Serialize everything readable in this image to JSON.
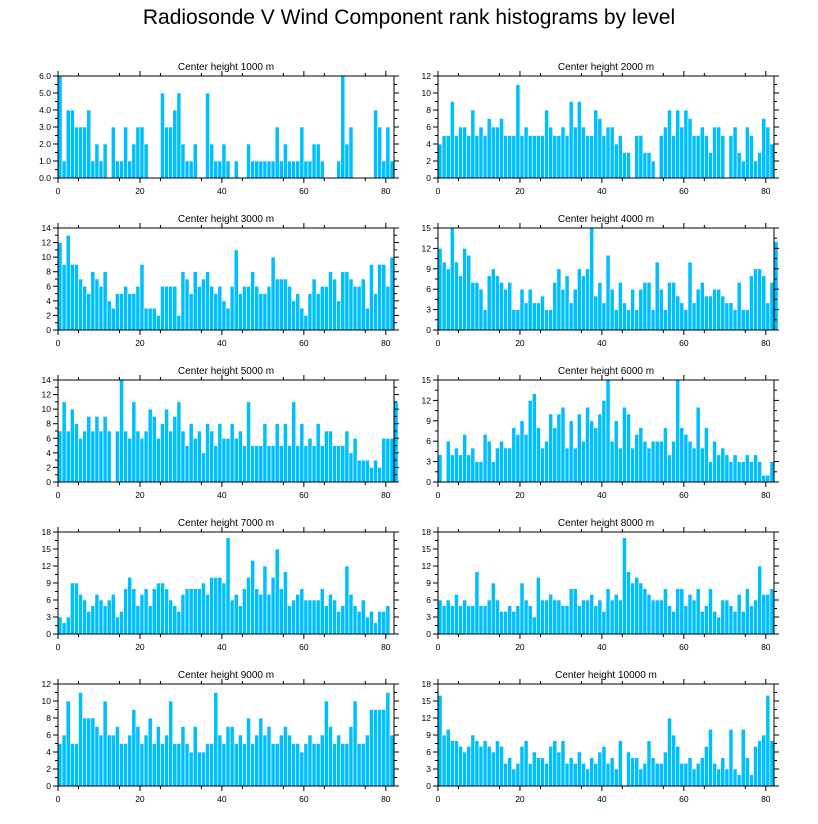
{
  "title": "Radiosonde V Wind Component rank histograms by level",
  "colors": {
    "bar": "#00bfff",
    "frame": "#000000",
    "background": "#ffffff"
  },
  "chart_data": [
    {
      "type": "bar",
      "title": "Center height 1000 m",
      "xlim": [
        0,
        82
      ],
      "ylim": [
        0,
        6
      ],
      "yticks": [
        0,
        1,
        2,
        3,
        4,
        5,
        6
      ],
      "ytick_labels": [
        "0.0",
        "1.0",
        "2.0",
        "3.0",
        "4.0",
        "5.0",
        "6.0"
      ],
      "xticks": [
        0,
        20,
        40,
        60,
        80
      ],
      "values": [
        6,
        1,
        4,
        4,
        3,
        3,
        3,
        4,
        1,
        2,
        1,
        2,
        0,
        3,
        1,
        1,
        3,
        1,
        2,
        3,
        3,
        2,
        0,
        0,
        0,
        5,
        3,
        3,
        4,
        5,
        2,
        1,
        1,
        2,
        0,
        0,
        5,
        2,
        1,
        1,
        2,
        1,
        0,
        1,
        0,
        0,
        2,
        1,
        1,
        1,
        1,
        1,
        1,
        3,
        1,
        2,
        1,
        1,
        1,
        3,
        1,
        1,
        2,
        2,
        1,
        0,
        0,
        0,
        1,
        6,
        2,
        3,
        0,
        0,
        0,
        0,
        0,
        4,
        3,
        1,
        3,
        1
      ]
    },
    {
      "type": "bar",
      "title": "Center height 2000 m",
      "xlim": [
        0,
        82
      ],
      "ylim": [
        0,
        12
      ],
      "yticks": [
        0,
        2,
        4,
        6,
        8,
        10,
        12
      ],
      "ytick_labels": [
        "0",
        "2",
        "4",
        "6",
        "8",
        "10",
        "12"
      ],
      "xticks": [
        0,
        20,
        40,
        60,
        80
      ],
      "values": [
        4,
        5,
        5,
        9,
        5,
        6,
        6,
        5,
        8,
        5,
        6,
        5,
        7,
        6,
        6,
        7,
        5,
        5,
        5,
        11,
        5,
        6,
        5,
        5,
        5,
        5,
        8,
        6,
        5,
        5,
        6,
        5,
        9,
        6,
        9,
        6,
        5,
        5,
        8,
        7,
        5,
        6,
        6,
        4,
        5,
        3,
        3,
        0,
        5,
        5,
        3,
        3,
        2,
        0,
        5,
        6,
        8,
        5,
        8,
        6,
        8,
        7,
        5,
        5,
        6,
        5,
        3,
        6,
        6,
        5,
        0,
        5,
        6,
        3,
        2,
        6,
        5,
        2,
        3,
        7,
        6,
        4
      ]
    },
    {
      "type": "bar",
      "title": "Center height 3000 m",
      "xlim": [
        0,
        82
      ],
      "ylim": [
        0,
        14
      ],
      "yticks": [
        0,
        2,
        4,
        6,
        8,
        10,
        12,
        14
      ],
      "ytick_labels": [
        "0",
        "2",
        "4",
        "6",
        "8",
        "10",
        "12",
        "14"
      ],
      "xticks": [
        0,
        20,
        40,
        60,
        80
      ],
      "values": [
        12,
        9,
        13,
        9,
        9,
        7,
        6,
        5,
        8,
        7,
        6,
        8,
        4,
        3,
        5,
        5,
        6,
        5,
        5,
        6,
        9,
        3,
        3,
        3,
        2,
        6,
        6,
        6,
        6,
        2,
        8,
        7,
        5,
        8,
        6,
        7,
        8,
        6,
        5,
        6,
        4,
        3,
        6,
        11,
        5,
        6,
        6,
        8,
        6,
        5,
        5,
        6,
        10,
        7,
        7,
        7,
        6,
        4,
        5,
        3,
        2,
        5,
        7,
        5,
        6,
        6,
        8,
        7,
        4,
        8,
        8,
        7,
        6,
        6,
        7,
        3,
        9,
        5,
        9,
        9,
        6,
        10
      ]
    },
    {
      "type": "bar",
      "title": "Center height 4000 m",
      "xlim": [
        0,
        82
      ],
      "ylim": [
        0,
        15
      ],
      "yticks": [
        0,
        3,
        6,
        9,
        12,
        15
      ],
      "ytick_labels": [
        "0",
        "3",
        "6",
        "9",
        "12",
        "15"
      ],
      "xticks": [
        0,
        20,
        40,
        60,
        80
      ],
      "values": [
        12,
        10,
        9,
        15,
        10,
        8,
        12,
        11,
        7,
        7,
        6,
        3,
        8,
        9,
        8,
        7,
        6,
        7,
        3,
        3,
        6,
        4,
        6,
        4,
        4,
        5,
        3,
        3,
        7,
        9,
        6,
        8,
        4,
        6,
        9,
        8,
        9,
        15,
        5,
        7,
        4,
        11,
        6,
        3,
        7,
        4,
        3,
        6,
        3,
        6,
        7,
        7,
        3,
        10,
        6,
        3,
        7,
        7,
        5,
        4,
        3,
        10,
        4,
        6,
        7,
        5,
        5,
        6,
        6,
        5,
        4,
        4,
        3,
        7,
        3,
        3,
        8,
        9,
        9,
        8,
        4,
        7,
        13
      ]
    },
    {
      "type": "bar",
      "title": "Center height 5000 m",
      "xlim": [
        0,
        82
      ],
      "ylim": [
        0,
        14
      ],
      "yticks": [
        0,
        2,
        4,
        6,
        8,
        10,
        12,
        14
      ],
      "ytick_labels": [
        "0",
        "2",
        "4",
        "6",
        "8",
        "10",
        "12",
        "14"
      ],
      "xticks": [
        0,
        20,
        40,
        60,
        80
      ],
      "values": [
        7,
        11,
        7,
        10,
        8,
        6,
        7,
        9,
        7,
        9,
        7,
        9,
        7,
        0,
        7,
        14,
        7,
        6,
        11,
        7,
        6,
        7,
        10,
        9,
        6,
        8,
        10,
        7,
        9,
        11,
        7,
        5,
        8,
        6,
        7,
        4,
        8,
        7,
        5,
        8,
        6,
        6,
        8,
        6,
        7,
        5,
        11,
        5,
        5,
        5,
        8,
        5,
        5,
        8,
        5,
        8,
        5,
        11,
        5,
        8,
        5,
        6,
        5,
        8,
        5,
        7,
        7,
        5,
        5,
        5,
        7,
        4,
        6,
        3,
        3,
        3,
        2,
        3,
        2,
        6,
        6,
        6,
        11
      ]
    },
    {
      "type": "bar",
      "title": "Center height 6000 m",
      "xlim": [
        0,
        82
      ],
      "ylim": [
        0,
        15
      ],
      "yticks": [
        0,
        3,
        6,
        9,
        12,
        15
      ],
      "ytick_labels": [
        "0",
        "3",
        "6",
        "9",
        "12",
        "15"
      ],
      "xticks": [
        0,
        20,
        40,
        60,
        80
      ],
      "values": [
        4,
        0,
        6,
        4,
        5,
        4,
        7,
        4,
        5,
        3,
        3,
        7,
        6,
        3,
        5,
        6,
        5,
        5,
        8,
        7,
        9,
        7,
        12,
        13,
        8,
        5,
        6,
        10,
        8,
        10,
        11,
        5,
        9,
        5,
        10,
        6,
        11,
        9,
        8,
        10,
        12,
        15,
        6,
        9,
        5,
        11,
        10,
        5,
        7,
        8,
        6,
        5,
        6,
        6,
        6,
        8,
        4,
        6,
        15,
        8,
        7,
        6,
        5,
        11,
        5,
        8,
        3,
        6,
        4,
        5,
        4,
        3,
        4,
        3,
        3,
        4,
        3,
        4,
        3,
        1,
        1,
        3
      ]
    },
    {
      "type": "bar",
      "title": "Center height 7000 m",
      "xlim": [
        0,
        82
      ],
      "ylim": [
        0,
        18
      ],
      "yticks": [
        0,
        3,
        6,
        9,
        12,
        15,
        18
      ],
      "ytick_labels": [
        "0",
        "3",
        "6",
        "9",
        "12",
        "15",
        "18"
      ],
      "xticks": [
        0,
        20,
        40,
        60,
        80
      ],
      "values": [
        3,
        2,
        3,
        9,
        9,
        7,
        6,
        4,
        5,
        7,
        6,
        5,
        6,
        7,
        3,
        4,
        8,
        10,
        8,
        5,
        7,
        8,
        5,
        8,
        9,
        9,
        8,
        6,
        5,
        4,
        7,
        8,
        8,
        8,
        8,
        9,
        7,
        10,
        10,
        10,
        9,
        17,
        6,
        7,
        5,
        8,
        10,
        13,
        8,
        7,
        12,
        7,
        10,
        15,
        8,
        11,
        5,
        6,
        7,
        8,
        6,
        6,
        6,
        6,
        8,
        5,
        7,
        6,
        4,
        5,
        12,
        7,
        5,
        4,
        6,
        3,
        4,
        2,
        4,
        4,
        5
      ]
    },
    {
      "type": "bar",
      "title": "Center height 8000 m",
      "xlim": [
        0,
        82
      ],
      "ylim": [
        0,
        18
      ],
      "yticks": [
        0,
        3,
        6,
        9,
        12,
        15,
        18
      ],
      "ytick_labels": [
        "0",
        "3",
        "6",
        "9",
        "12",
        "15",
        "18"
      ],
      "xticks": [
        0,
        20,
        40,
        60,
        80
      ],
      "values": [
        6,
        5,
        6,
        5,
        7,
        5,
        6,
        5,
        5,
        11,
        5,
        5,
        6,
        9,
        6,
        4,
        4,
        5,
        4,
        5,
        9,
        6,
        5,
        3,
        10,
        6,
        6,
        7,
        6,
        6,
        5,
        5,
        8,
        8,
        5,
        6,
        6,
        7,
        5,
        6,
        4,
        8,
        6,
        7,
        6,
        17,
        11,
        9,
        10,
        9,
        8,
        7,
        6,
        6,
        6,
        8,
        5,
        4,
        8,
        8,
        5,
        7,
        6,
        8,
        4,
        5,
        8,
        4,
        3,
        6,
        6,
        5,
        4,
        7,
        4,
        8,
        5,
        6,
        12,
        7,
        7,
        8
      ]
    },
    {
      "type": "bar",
      "title": "Center height 9000 m",
      "xlim": [
        0,
        82
      ],
      "ylim": [
        0,
        12
      ],
      "yticks": [
        0,
        2,
        4,
        6,
        8,
        10,
        12
      ],
      "ytick_labels": [
        "0",
        "2",
        "4",
        "6",
        "8",
        "10",
        "12"
      ],
      "xticks": [
        0,
        20,
        40,
        60,
        80
      ],
      "values": [
        5,
        6,
        10,
        5,
        5,
        11,
        8,
        8,
        8,
        7,
        6,
        10,
        6,
        6,
        7,
        5,
        5,
        6,
        9,
        7,
        5,
        6,
        8,
        5,
        7,
        5,
        6,
        10,
        5,
        5,
        7,
        5,
        4,
        7,
        4,
        4,
        5,
        5,
        11,
        6,
        5,
        7,
        7,
        5,
        6,
        5,
        8,
        5,
        6,
        8,
        6,
        7,
        5,
        5,
        6,
        7,
        6,
        5,
        5,
        4,
        5,
        6,
        5,
        5,
        6,
        10,
        7,
        5,
        6,
        5,
        5,
        7,
        10,
        5,
        5,
        6,
        9,
        9,
        9,
        9,
        11,
        6
      ]
    },
    {
      "type": "bar",
      "title": "Center height 10000 m",
      "xlim": [
        0,
        82
      ],
      "ylim": [
        0,
        18
      ],
      "yticks": [
        0,
        3,
        6,
        9,
        12,
        15,
        18
      ],
      "ytick_labels": [
        "0",
        "3",
        "6",
        "9",
        "12",
        "15",
        "18"
      ],
      "xticks": [
        0,
        20,
        40,
        60,
        80
      ],
      "values": [
        16,
        9,
        10,
        8,
        8,
        7,
        6,
        7,
        9,
        8,
        7,
        8,
        7,
        6,
        8,
        7,
        4,
        5,
        3,
        4,
        7,
        8,
        4,
        6,
        5,
        5,
        4,
        7,
        8,
        6,
        8,
        4,
        5,
        4,
        6,
        4,
        3,
        5,
        4,
        6,
        7,
        4,
        5,
        3,
        8,
        0,
        6,
        5,
        5,
        3,
        4,
        8,
        5,
        4,
        4,
        6,
        12,
        9,
        7,
        4,
        4,
        5,
        3,
        4,
        5,
        7,
        10,
        4,
        3,
        5,
        3,
        10,
        3,
        2,
        10,
        5,
        2,
        7,
        8,
        9,
        16,
        8
      ]
    }
  ]
}
